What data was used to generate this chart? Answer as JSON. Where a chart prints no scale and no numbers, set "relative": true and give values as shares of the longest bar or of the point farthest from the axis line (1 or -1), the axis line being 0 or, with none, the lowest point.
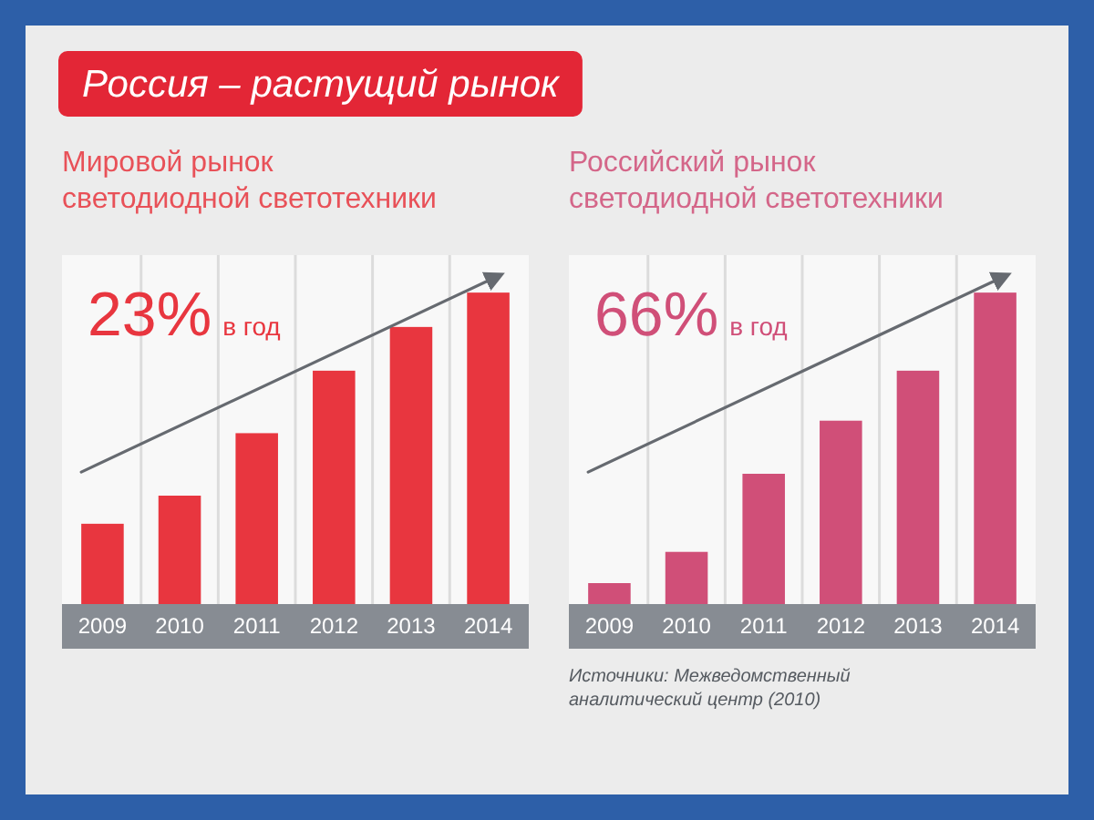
{
  "chart_data": [
    {
      "type": "other",
      "title": "Россия – растущий рынок"
    },
    {
      "type": "bar",
      "title": "Мировой рынок светодиодной светотехники",
      "categories": [
        "2009",
        "2010",
        "2011",
        "2012",
        "2013",
        "2014"
      ],
      "values": [
        0.26,
        0.35,
        0.55,
        0.75,
        0.89,
        1
      ],
      "color": "#e8363f",
      "relative": true,
      "grid": "x",
      "annotations": [
        "23% в год"
      ]
    },
    {
      "type": "bar",
      "title": "Российский рынок светодиодной светотехники",
      "categories": [
        "2009",
        "2010",
        "2011",
        "2012",
        "2013",
        "2014"
      ],
      "values": [
        0.07,
        0.17,
        0.42,
        0.59,
        0.75,
        1
      ],
      "color": "#d04f78",
      "relative": true,
      "grid": "x",
      "annotations": [
        "66% в год",
        "Источники: Межведомственный аналитический центр (2010)"
      ]
    }
  ]
}
